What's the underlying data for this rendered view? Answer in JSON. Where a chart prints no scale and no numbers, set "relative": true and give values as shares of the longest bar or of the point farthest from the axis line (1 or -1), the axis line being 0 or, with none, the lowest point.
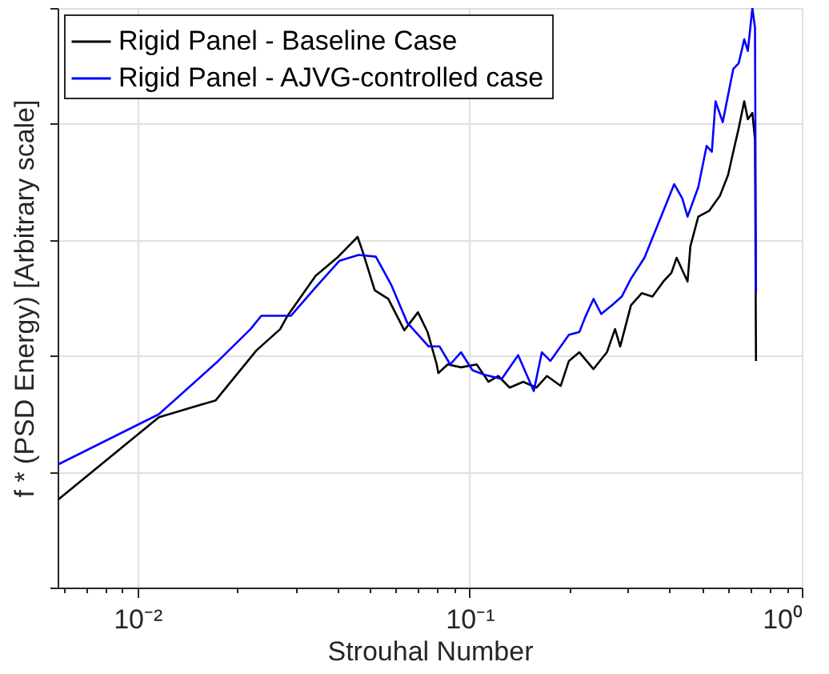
{
  "chart_data": {
    "type": "line",
    "relative": true,
    "xlabel": "Strouhal Number",
    "ylabel": "f * (PSD Energy) [Arbitrary scale]",
    "log": "x",
    "grid": true,
    "legend": "top left",
    "line_style": "solid",
    "marker": "none",
    "xlim": [
      0.00575,
      1
    ],
    "xticks": [
      {
        "value": 0.006,
        "label": null
      },
      {
        "value": 0.007,
        "label": null
      },
      {
        "value": 0.008,
        "label": null
      },
      {
        "value": 0.009,
        "label": null
      },
      {
        "value": 0.01,
        "label": "10⁻²"
      },
      {
        "value": 0.02,
        "label": null
      },
      {
        "value": 0.03,
        "label": null
      },
      {
        "value": 0.04,
        "label": null
      },
      {
        "value": 0.05,
        "label": null
      },
      {
        "value": 0.06,
        "label": null
      },
      {
        "value": 0.07,
        "label": null
      },
      {
        "value": 0.08,
        "label": null
      },
      {
        "value": 0.09,
        "label": null
      },
      {
        "value": 0.1,
        "label": "10⁻¹"
      },
      {
        "value": 0.2,
        "label": null
      },
      {
        "value": 0.3,
        "label": null
      },
      {
        "value": 0.4,
        "label": null
      },
      {
        "value": 0.5,
        "label": null
      },
      {
        "value": 0.6,
        "label": null
      },
      {
        "value": 0.7,
        "label": null
      },
      {
        "value": 0.8,
        "label": null
      },
      {
        "value": 0.9,
        "label": null
      },
      {
        "value": 1,
        "label": "10⁰"
      }
    ],
    "series": [
      {
        "name": "Rigid Panel - Baseline Case",
        "color": "#000000",
        "x": [
          0.00575,
          0.0116,
          0.0172,
          0.0228,
          0.0269,
          0.0283,
          0.0344,
          0.0399,
          0.046,
          0.0477,
          0.0518,
          0.0569,
          0.0636,
          0.0699,
          0.0747,
          0.0796,
          0.0805,
          0.0859,
          0.0942,
          0.105,
          0.114,
          0.122,
          0.132,
          0.145,
          0.159,
          0.171,
          0.188,
          0.199,
          0.214,
          0.236,
          0.259,
          0.274,
          0.284,
          0.306,
          0.33,
          0.355,
          0.383,
          0.405,
          0.42,
          0.453,
          0.462,
          0.488,
          0.526,
          0.567,
          0.6,
          0.622,
          0.646,
          0.671,
          0.688,
          0.71,
          0.723,
          0.728
        ],
        "values": [
          0.151,
          0.294,
          0.323,
          0.409,
          0.446,
          0.469,
          0.538,
          0.569,
          0.605,
          0.579,
          0.513,
          0.498,
          0.444,
          0.475,
          0.441,
          0.385,
          0.37,
          0.385,
          0.38,
          0.385,
          0.355,
          0.365,
          0.345,
          0.355,
          0.345,
          0.365,
          0.348,
          0.391,
          0.406,
          0.377,
          0.406,
          0.446,
          0.416,
          0.487,
          0.508,
          0.502,
          0.528,
          0.543,
          0.569,
          0.528,
          0.589,
          0.64,
          0.65,
          0.676,
          0.712,
          0.752,
          0.793,
          0.839,
          0.808,
          0.819,
          0.773,
          0.391
        ]
      },
      {
        "name": "Rigid Panel - AJVG-controlled case",
        "color": "#0000ff",
        "x": [
          0.00575,
          0.0116,
          0.0175,
          0.0219,
          0.0236,
          0.029,
          0.0344,
          0.0406,
          0.0463,
          0.0522,
          0.058,
          0.0649,
          0.0753,
          0.0812,
          0.0874,
          0.0942,
          0.102,
          0.111,
          0.125,
          0.14,
          0.156,
          0.165,
          0.175,
          0.188,
          0.199,
          0.214,
          0.223,
          0.236,
          0.249,
          0.268,
          0.287,
          0.306,
          0.336,
          0.362,
          0.39,
          0.413,
          0.437,
          0.453,
          0.488,
          0.517,
          0.536,
          0.55,
          0.578,
          0.622,
          0.646,
          0.671,
          0.688,
          0.71,
          0.723,
          0.728
        ],
        "values": [
          0.212,
          0.299,
          0.391,
          0.446,
          0.469,
          0.469,
          0.518,
          0.564,
          0.574,
          0.571,
          0.523,
          0.457,
          0.416,
          0.416,
          0.385,
          0.406,
          0.375,
          0.367,
          0.36,
          0.401,
          0.339,
          0.406,
          0.391,
          0.416,
          0.436,
          0.441,
          0.467,
          0.498,
          0.472,
          0.487,
          0.502,
          0.533,
          0.569,
          0.615,
          0.661,
          0.696,
          0.671,
          0.64,
          0.691,
          0.762,
          0.752,
          0.839,
          0.803,
          0.895,
          0.905,
          0.946,
          0.926,
          1,
          0.966,
          0.508
        ]
      }
    ]
  }
}
